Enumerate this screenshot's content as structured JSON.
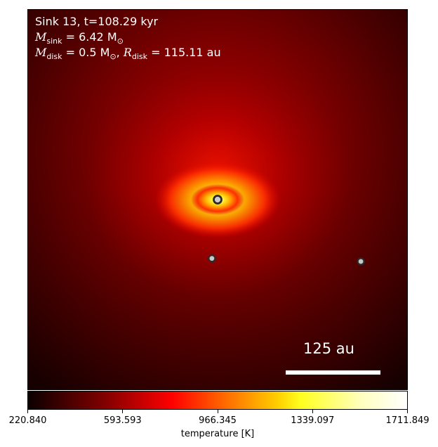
{
  "chart_data": {
    "type": "heatmap",
    "title_lines": {
      "line1": "Sink 13, t=108.29 kyr",
      "line2_symbol": "M",
      "line2_sub": "sink",
      "line2_value": " = 6.42 M",
      "line2_unit_sub": "⊙",
      "line3_symbol_a": "M",
      "line3_sub_a": "disk",
      "line3_value_a": " = 0.5 M",
      "line3_unit_sub": "⊙",
      "line3_sep": ", ",
      "line3_symbol_b": "R",
      "line3_sub_b": "disk",
      "line3_value_b": " = 115.11 au"
    },
    "scale_bar": {
      "label": "125 au"
    },
    "colorbar": {
      "label": "temperature [K]",
      "min": 220.84,
      "max": 1711.849,
      "ticks": [
        "220.840",
        "593.593",
        "966.345",
        "1339.097",
        "1711.849"
      ],
      "colormap": "hot"
    },
    "sinks": [
      {
        "role": "central",
        "x": 0.5,
        "y": 0.5
      },
      {
        "role": "companion",
        "x": 0.485,
        "y": 0.655
      },
      {
        "role": "companion",
        "x": 0.878,
        "y": 0.663
      }
    ]
  }
}
